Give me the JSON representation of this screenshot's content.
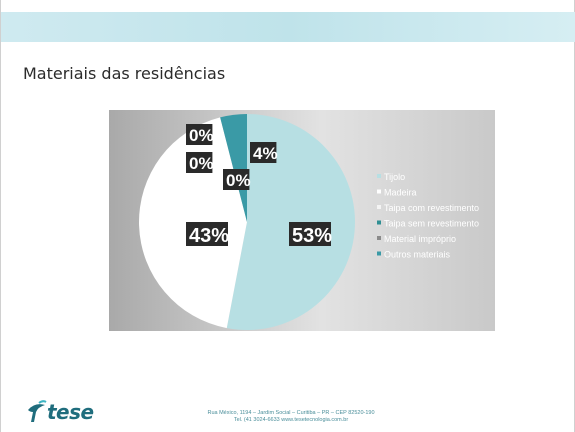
{
  "slide": {
    "title": "Materiais das residências",
    "footer_line1": "Rua México, 1194 – Jardim Social – Curitiba – PR – CEP 82520-190",
    "footer_line2": "Tel. (41 3024-6633    www.tesetecnologia.com.br",
    "logo_text": "tese"
  },
  "colors": {
    "header_band": "#bfe3ea",
    "brand": "#1f6d7d"
  },
  "chart_data": {
    "type": "pie",
    "categories": [
      "Tijolo",
      "Madeira",
      "Taipa com revestimento",
      "Taipa sem revestimento",
      "Material impróprio",
      "Outros materiais"
    ],
    "values": [
      53,
      43,
      0,
      0,
      0,
      4
    ],
    "data_labels": [
      "53%",
      "43%",
      "0%",
      "0%",
      "0%",
      "4%"
    ],
    "colors": [
      "#b7dfe3",
      "#ffffff",
      "#f4f4f4",
      "#2f8f93",
      "#8a8a8a",
      "#3a9aa6"
    ],
    "legend_position": "right",
    "legend_entries": [
      "Tijolo",
      "Madeira",
      "Taipa com revestimento",
      "Taipa sem revestimento",
      "Material impróprio",
      "Outros materiais"
    ]
  }
}
